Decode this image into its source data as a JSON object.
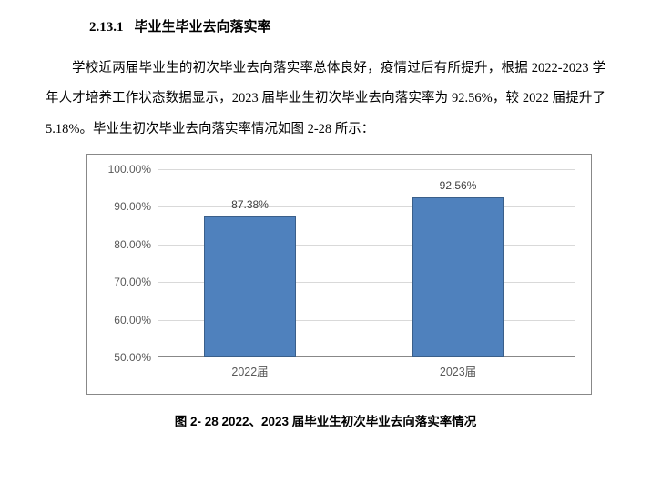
{
  "heading": {
    "number": "2.13.1",
    "title": "毕业生毕业去向落实率"
  },
  "paragraph_parts": {
    "p1": "学校近两届毕业生的初次毕业去向落实率总体良好，疫情过后有所提升，根据 ",
    "p2": "2022-2023",
    "p3": " 学年人才培养工作状态数据显示，",
    "p4": "2023",
    "p5": " 届毕业生初次毕业去向落实率为 ",
    "p6": "92.56%",
    "p7": "，较 ",
    "p8": "2022",
    "p9": " 届提升了 ",
    "p10": "5.18%",
    "p11": "。毕业生初次毕业去向落实率情况如图 ",
    "p12": "2-28",
    "p13": " 所示："
  },
  "chart": {
    "type": "bar",
    "categories": [
      "2022届",
      "2023届"
    ],
    "values": [
      87.38,
      92.56
    ],
    "value_labels": [
      "87.38%",
      "92.56%"
    ],
    "bar_color": "#4f81bd",
    "bar_border_color": "#3a5f8a",
    "ylim": [
      50,
      100
    ],
    "ytick_step": 10,
    "yticks": [
      "50.00%",
      "60.00%",
      "70.00%",
      "80.00%",
      "90.00%",
      "100.00%"
    ],
    "grid_color": "#d9d9d9",
    "bar_width_pct": 22,
    "bar_positions_pct": [
      22,
      72
    ],
    "label_fontsize": 12,
    "tick_fontsize": 12
  },
  "caption": "图 2- 28  2022、2023 届毕业生初次毕业去向落实率情况"
}
